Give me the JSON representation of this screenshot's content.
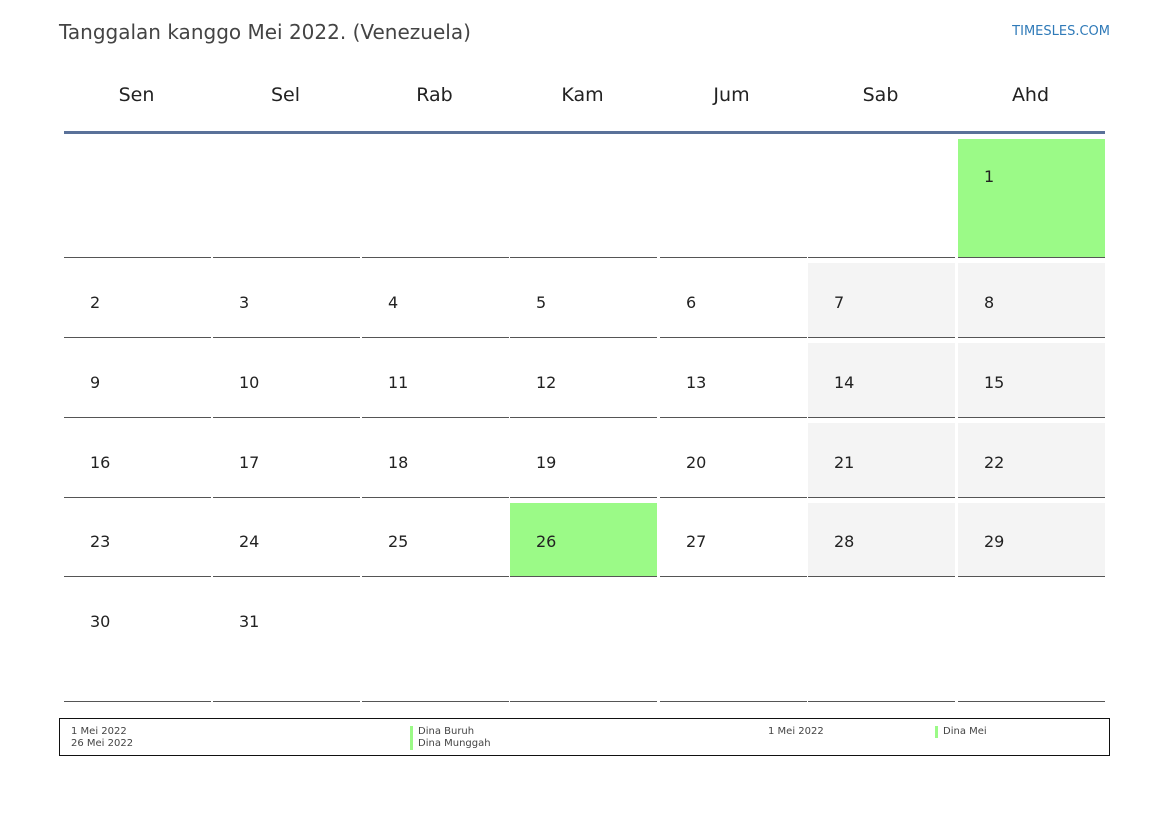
{
  "header": {
    "title": "Tanggalan kanggo Mei 2022. (Venezuela)",
    "brand": "TIMESLES.COM"
  },
  "weekdays": [
    "Sen",
    "Sel",
    "Rab",
    "Kam",
    "Jum",
    "Sab",
    "Ahd"
  ],
  "calendar": {
    "weeks": [
      [
        "",
        "",
        "",
        "",
        "",
        "",
        "1"
      ],
      [
        "2",
        "3",
        "4",
        "5",
        "6",
        "7",
        "8"
      ],
      [
        "9",
        "10",
        "11",
        "12",
        "13",
        "14",
        "15"
      ],
      [
        "16",
        "17",
        "18",
        "19",
        "20",
        "21",
        "22"
      ],
      [
        "23",
        "24",
        "25",
        "26",
        "27",
        "28",
        "29"
      ],
      [
        "30",
        "31",
        "",
        "",
        "",
        "",
        ""
      ]
    ],
    "highlighted_days": [
      "1",
      "26"
    ]
  },
  "colors": {
    "holiday": "#9bfa87",
    "weekend": "#f4f4f4",
    "header_rule": "#5a7199",
    "brand": "#2f7ab8"
  },
  "legend": {
    "holidays": [
      {
        "date": "1 Mei 2022",
        "name": "Dina Buruh"
      },
      {
        "date": "26 Mei 2022",
        "name": "Dina Munggah"
      }
    ],
    "observances": [
      {
        "date": "1 Mei 2022",
        "name": "Dina Mei"
      }
    ]
  }
}
